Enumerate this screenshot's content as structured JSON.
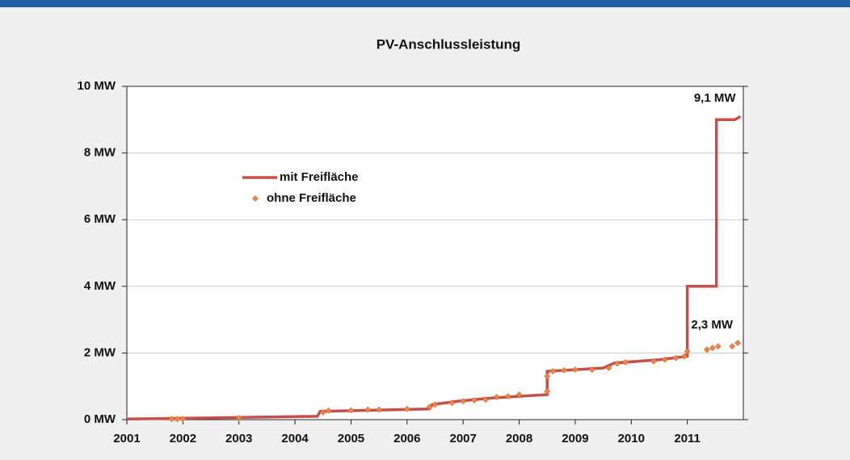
{
  "chart_data": {
    "type": "line",
    "title": "PV-Anschlussleistung",
    "xlim": [
      2001,
      2012
    ],
    "xticks": [
      2001,
      2002,
      2003,
      2004,
      2005,
      2006,
      2007,
      2008,
      2009,
      2010,
      2011
    ],
    "ylim": [
      0,
      10
    ],
    "yticks": [
      {
        "value": 0,
        "label": "0 MW"
      },
      {
        "value": 2,
        "label": "2 MW"
      },
      {
        "value": 4,
        "label": "4 MW"
      },
      {
        "value": 6,
        "label": "6 MW"
      },
      {
        "value": 8,
        "label": "8 MW"
      },
      {
        "value": 10,
        "label": "10 MW"
      }
    ],
    "grid": true,
    "legend": "upper left",
    "series": [
      {
        "name": "mit Freifläche",
        "type": "line",
        "color": "#c4504a",
        "x": [
          2001,
          2004.4,
          2004.45,
          2006.4,
          2006.45,
          2006.9,
          2007.5,
          2008.5,
          2008.5,
          2009.5,
          2009.7,
          2010.5,
          2011.0,
          2011.0,
          2011.52,
          2011.52,
          2011.85,
          2011.95
        ],
        "values": [
          0.02,
          0.1,
          0.25,
          0.32,
          0.45,
          0.55,
          0.65,
          0.75,
          1.45,
          1.55,
          1.7,
          1.8,
          1.9,
          4.0,
          4.0,
          9.0,
          9.0,
          9.1
        ]
      },
      {
        "name": "ohne Freifläche",
        "type": "scatter",
        "color": "#e8864e",
        "x": [
          2001.8,
          2001.9,
          2002,
          2003,
          2004.5,
          2004.6,
          2005,
          2005.3,
          2005.5,
          2006,
          2006.4,
          2006.5,
          2006.8,
          2007,
          2007.2,
          2007.4,
          2007.6,
          2007.8,
          2008,
          2008.5,
          2008.5,
          2008.6,
          2008.8,
          2009,
          2009.3,
          2009.6,
          2009.75,
          2009.9,
          2010.4,
          2010.6,
          2010.8,
          2010.95,
          2011,
          2011.35,
          2011.45,
          2011.55,
          2011.8,
          2011.9
        ],
        "values": [
          0.02,
          0.02,
          0.02,
          0.05,
          0.22,
          0.27,
          0.28,
          0.3,
          0.3,
          0.32,
          0.38,
          0.45,
          0.5,
          0.55,
          0.58,
          0.6,
          0.68,
          0.7,
          0.75,
          0.85,
          1.3,
          1.45,
          1.48,
          1.5,
          1.5,
          1.55,
          1.68,
          1.72,
          1.75,
          1.8,
          1.85,
          1.9,
          2.05,
          2.1,
          2.15,
          2.2,
          2.2,
          2.3
        ]
      }
    ],
    "annotations": [
      "9,1 MW",
      "2,3 MW"
    ]
  }
}
